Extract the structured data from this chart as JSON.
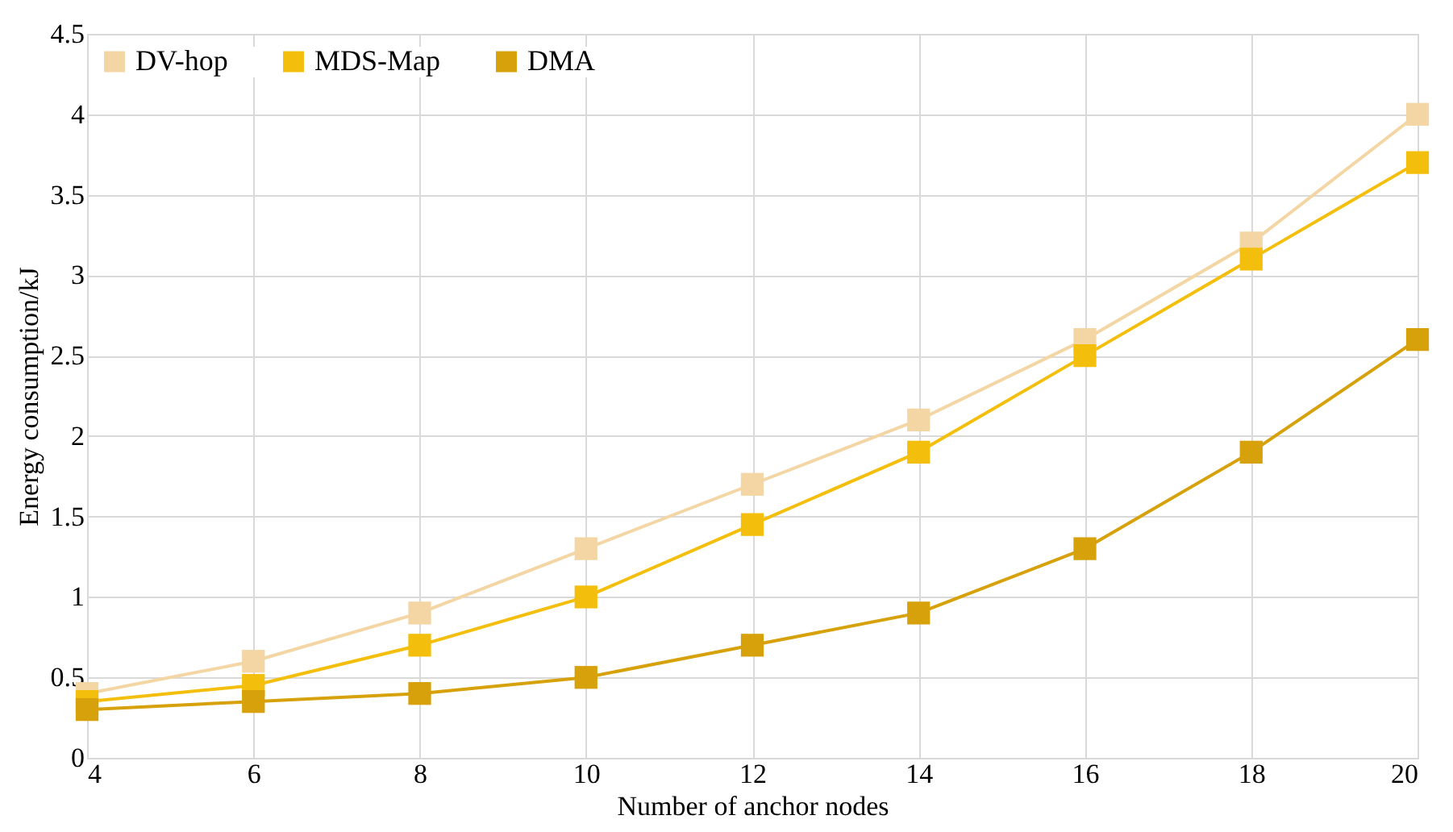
{
  "chart_data": {
    "type": "line",
    "xlabel": "Number of anchor nodes",
    "ylabel": "Energy consumption/kJ",
    "x": [
      4,
      6,
      8,
      10,
      12,
      14,
      16,
      18,
      20
    ],
    "series": [
      {
        "name": "DV-hop",
        "color": "#f3d6a4",
        "values": [
          0.4,
          0.6,
          0.9,
          1.3,
          1.7,
          2.1,
          2.6,
          3.2,
          4.0
        ]
      },
      {
        "name": "MDS-Map",
        "color": "#f4bf0c",
        "values": [
          0.35,
          0.45,
          0.7,
          1.0,
          1.45,
          1.9,
          2.5,
          3.1,
          3.7
        ]
      },
      {
        "name": "DMA",
        "color": "#d6a10a",
        "values": [
          0.3,
          0.35,
          0.4,
          0.5,
          0.7,
          0.9,
          1.3,
          1.9,
          2.6
        ]
      }
    ],
    "xlim": [
      4,
      20
    ],
    "xticks": [
      4,
      6,
      8,
      10,
      12,
      14,
      16,
      18,
      20
    ],
    "ylim": [
      0,
      4.5
    ],
    "yticks": [
      0,
      0.5,
      1,
      1.5,
      2,
      2.5,
      3,
      3.5,
      4,
      4.5
    ],
    "grid": true,
    "legend": "top left",
    "marker": "square",
    "line_style": "solid"
  }
}
